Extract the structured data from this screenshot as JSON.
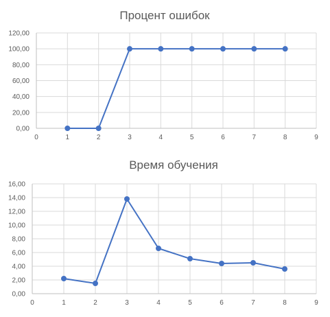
{
  "colors": {
    "series": "#4472c4",
    "top_accent": "#217346"
  },
  "chart_data": [
    {
      "type": "scatter",
      "title": "Процент ошибок",
      "series": [
        {
          "x": [
            1,
            2,
            3,
            4,
            5,
            6,
            7,
            8
          ],
          "y": [
            0,
            0,
            100,
            100,
            100,
            100,
            100,
            100
          ]
        }
      ],
      "xlim": [
        0,
        9
      ],
      "ylim": [
        0,
        120
      ],
      "xticks": [
        "0",
        "1",
        "2",
        "3",
        "4",
        "5",
        "6",
        "7",
        "8",
        "9"
      ],
      "yticks": [
        "0,00",
        "20,00",
        "40,00",
        "60,00",
        "80,00",
        "100,00",
        "120,00"
      ],
      "grid": true,
      "markers": true,
      "lines": true
    },
    {
      "type": "scatter",
      "title": "Время обучения",
      "series": [
        {
          "x": [
            1,
            2,
            3,
            4,
            5,
            6,
            7,
            8
          ],
          "y": [
            2.2,
            1.5,
            13.8,
            6.6,
            5.1,
            4.4,
            4.5,
            3.6
          ]
        }
      ],
      "xlim": [
        0,
        9
      ],
      "ylim": [
        0,
        16
      ],
      "xticks": [
        "0",
        "1",
        "2",
        "3",
        "4",
        "5",
        "6",
        "7",
        "8",
        "9"
      ],
      "yticks": [
        "0,00",
        "2,00",
        "4,00",
        "6,00",
        "8,00",
        "10,00",
        "12,00",
        "14,00",
        "16,00"
      ],
      "grid": true,
      "markers": true,
      "lines": true
    }
  ]
}
